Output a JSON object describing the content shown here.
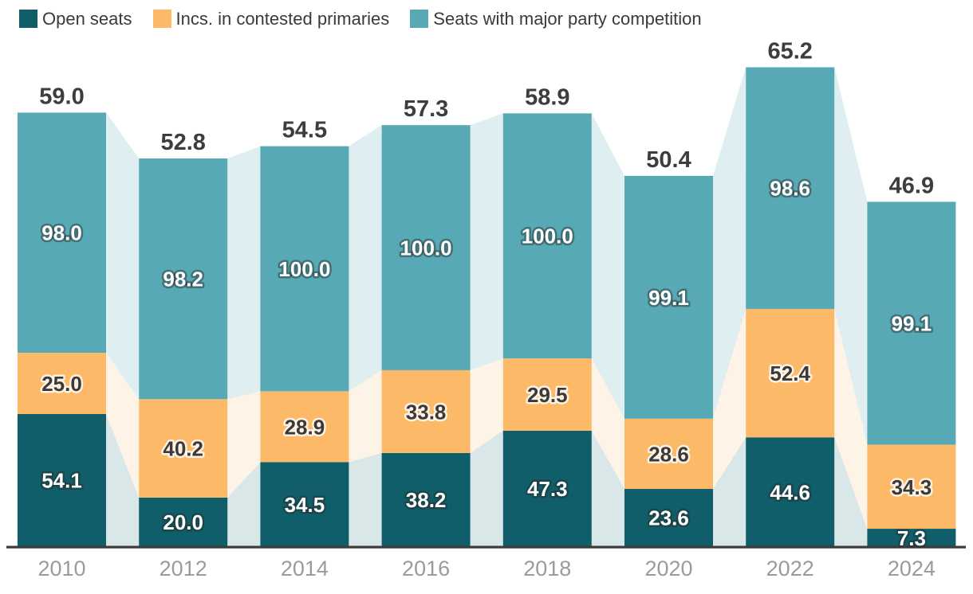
{
  "legend": {
    "items": [
      {
        "label": "Open seats",
        "color": "#0f5e69"
      },
      {
        "label": "Incs. in contested primaries",
        "color": "#fcb968"
      },
      {
        "label": "Seats with major party competition",
        "color": "#57aab5"
      }
    ]
  },
  "chart_data": {
    "type": "bar",
    "subtype": "stacked-columns-with-pale-connector-bands",
    "categories": [
      "2010",
      "2012",
      "2014",
      "2016",
      "2018",
      "2020",
      "2022",
      "2024"
    ],
    "series": [
      {
        "name": "Open seats",
        "color": "#0f5e69",
        "connector_color": "#d9e7e9",
        "label_style": "on-dark",
        "values": [
          54.1,
          20.0,
          34.5,
          38.2,
          47.3,
          23.6,
          44.6,
          7.3
        ]
      },
      {
        "name": "Incs. in contested primaries",
        "color": "#fcb968",
        "connector_color": "#fdf3e6",
        "label_style": "on-light",
        "values": [
          25.0,
          40.2,
          28.9,
          33.8,
          29.5,
          28.6,
          52.4,
          34.3
        ]
      },
      {
        "name": "Seats with major party competition",
        "color": "#57aab5",
        "connector_color": "#dfeef0",
        "label_style": "on-dark",
        "values": [
          98.0,
          98.2,
          100.0,
          100.0,
          100.0,
          99.1,
          98.6,
          99.1
        ]
      }
    ],
    "totals": [
      59.0,
      52.8,
      54.5,
      57.3,
      58.9,
      50.4,
      65.2,
      46.9
    ],
    "totals_note": "top label above each column equals the average of the three series values; each stacked segment is drawn with height value/3",
    "ylim": [
      0,
      68.5
    ],
    "grid": false,
    "legend_position": "top-left",
    "axis_color": "#3c3c3c",
    "tick_label_color": "#9b9b9b",
    "total_label_color": "#3d3d3d",
    "segment_label_colors": {
      "on_dark": "#ffffff",
      "on_light": "#3a3a3a"
    }
  }
}
